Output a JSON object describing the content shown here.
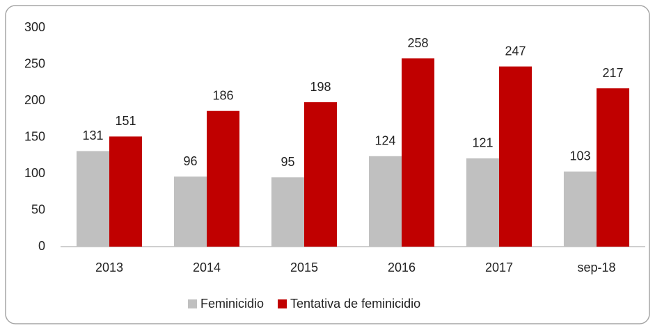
{
  "chart_data": {
    "type": "bar",
    "categories": [
      "2013",
      "2014",
      "2015",
      "2016",
      "2017",
      "sep-18"
    ],
    "series": [
      {
        "name": "Feminicidio",
        "color": "#c0c0c0",
        "values": [
          131,
          96,
          95,
          124,
          121,
          103
        ]
      },
      {
        "name": "Tentativa de feminicidio",
        "color": "#c00000",
        "values": [
          151,
          186,
          198,
          258,
          247,
          217
        ]
      }
    ],
    "ylim": [
      0,
      300
    ],
    "yticks": [
      0,
      50,
      100,
      150,
      200,
      250,
      300
    ],
    "grid": false,
    "legend": "bottom"
  }
}
